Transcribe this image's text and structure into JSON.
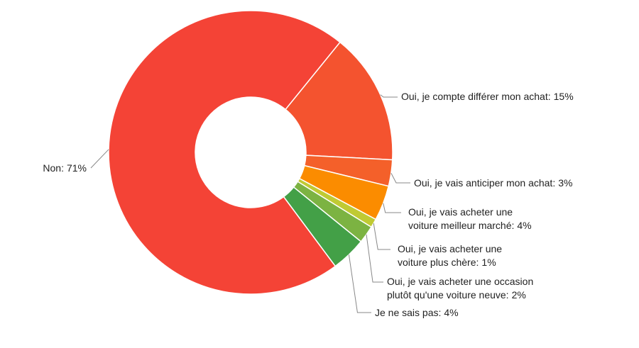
{
  "chart_data": {
    "type": "donut",
    "categories": [
      "Oui, je compte différer mon achat:",
      "Oui, je vais anticiper mon achat:",
      "Oui, je vais acheter une voiture meilleur marché:",
      "Oui, je vais acheter une voiture plus chère:",
      "Oui, je vais acheter une occasion plutôt qu'une voiture neuve:",
      "Je ne sais pas:",
      "Non:"
    ],
    "values": [
      15,
      3,
      4,
      1,
      2,
      4,
      71
    ],
    "value_labels": [
      "15%",
      "3%",
      "4%",
      "1%",
      "2%",
      "4%",
      "71%"
    ],
    "colors": [
      "#f4532f",
      "#f4602a",
      "#fb8c00",
      "#c0ca33",
      "#7cb342",
      "#43a047",
      "#f44336"
    ]
  }
}
